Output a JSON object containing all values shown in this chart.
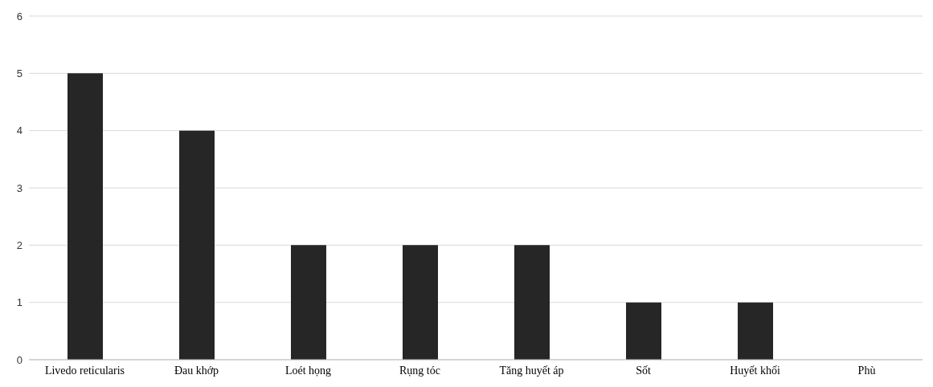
{
  "chart_data": {
    "type": "bar",
    "categories": [
      "Livedo reticularis",
      "Đau khớp",
      "Loét họng",
      "Rụng tóc",
      "Tăng huyết áp",
      "Sốt",
      "Huyết khối",
      "Phù"
    ],
    "values": [
      5,
      4,
      2,
      2,
      2,
      1,
      1,
      0
    ],
    "color": "#262626",
    "ylim": [
      0,
      6
    ],
    "yticks": [
      0,
      1,
      2,
      3,
      4,
      5,
      6
    ],
    "grid": "y"
  }
}
